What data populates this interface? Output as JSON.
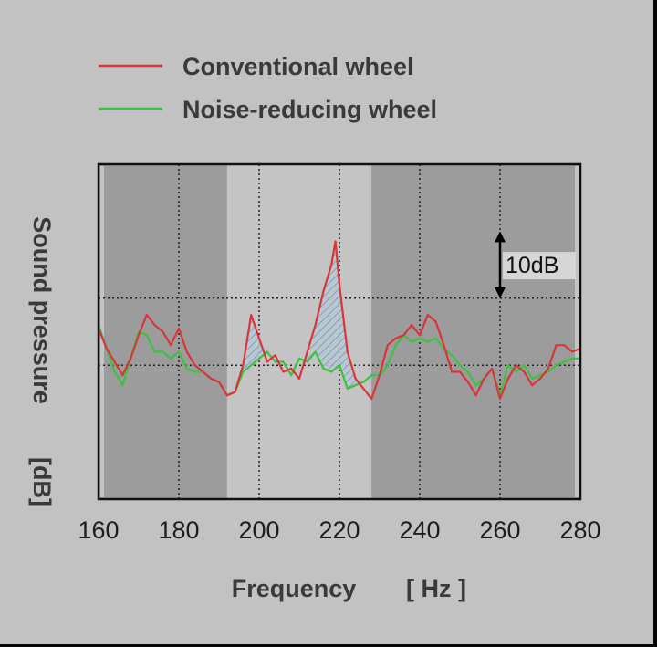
{
  "chart_data": {
    "type": "line",
    "legend_position": "top-left",
    "xlabel": "Frequency",
    "xunit": "[ Hz ]",
    "ylabel": "Sound pressure",
    "yunit": "[dB]",
    "xlim": [
      160,
      280
    ],
    "x_ticks": [
      160,
      180,
      200,
      220,
      240,
      260,
      280
    ],
    "y_grid": true,
    "x_grid": true,
    "annotation": {
      "text": "10dB",
      "x": 260,
      "y_from": 30,
      "y_to": 20
    },
    "shaded_bands": [
      {
        "from": 160,
        "to": 192,
        "shade": "dark"
      },
      {
        "from": 192,
        "to": 228,
        "shade": "light"
      },
      {
        "from": 228,
        "to": 280,
        "shade": "dark"
      }
    ],
    "series": [
      {
        "name": "Conventional wheel",
        "color": "#d8353a",
        "x": [
          160,
          162,
          164,
          166,
          168,
          170,
          172,
          174,
          176,
          178,
          180,
          182,
          184,
          186,
          188,
          190,
          192,
          194,
          196,
          198,
          200,
          202,
          204,
          206,
          208,
          210,
          212,
          214,
          216,
          218,
          219,
          220,
          222,
          224,
          226,
          228,
          230,
          232,
          234,
          236,
          238,
          240,
          242,
          244,
          246,
          248,
          250,
          252,
          254,
          256,
          258,
          260,
          262,
          264,
          266,
          268,
          270,
          272,
          274,
          276,
          278,
          280
        ],
        "y": [
          15.5,
          12.5,
          10.5,
          8.5,
          11,
          14.5,
          17.5,
          16,
          15,
          13,
          15.5,
          12,
          10,
          9,
          8,
          7.5,
          5.5,
          6,
          10,
          17.5,
          14,
          10.5,
          11.5,
          9,
          9.5,
          8,
          12,
          16,
          21,
          25,
          28.5,
          22,
          12,
          8,
          6.5,
          5,
          8.5,
          13,
          14,
          14.5,
          16,
          14.5,
          17.5,
          16.5,
          13,
          9,
          9,
          7.5,
          5.5,
          8,
          9.5,
          5,
          8,
          10,
          9,
          7,
          8,
          9.5,
          13,
          13,
          12,
          12.5
        ]
      },
      {
        "name": "Noise-reducing wheel",
        "color": "#3dc142",
        "x": [
          160,
          162,
          164,
          166,
          168,
          170,
          172,
          174,
          176,
          178,
          180,
          182,
          184,
          186,
          188,
          190,
          192,
          194,
          196,
          198,
          200,
          202,
          204,
          206,
          208,
          210,
          212,
          214,
          216,
          218,
          220,
          222,
          224,
          226,
          228,
          230,
          232,
          234,
          236,
          238,
          240,
          242,
          244,
          246,
          248,
          250,
          252,
          254,
          256,
          258,
          260,
          262,
          264,
          266,
          268,
          270,
          272,
          274,
          276,
          278,
          280
        ],
        "y": [
          16,
          12.5,
          9,
          7,
          11,
          15,
          14.5,
          12,
          12,
          11,
          12,
          9.5,
          9,
          9,
          8,
          7.5,
          5.5,
          6,
          9,
          10,
          11,
          12,
          10.5,
          10.5,
          8.5,
          11,
          10.5,
          12,
          9.5,
          9,
          10,
          6.5,
          7,
          7.5,
          8.5,
          8.5,
          10,
          13,
          14.5,
          13.5,
          14,
          13.5,
          14,
          12.5,
          11.5,
          10,
          9,
          7,
          8,
          9.5,
          5.5,
          10,
          9,
          10,
          8,
          8.5,
          9,
          10,
          10.5,
          11,
          11
        ]
      }
    ]
  }
}
